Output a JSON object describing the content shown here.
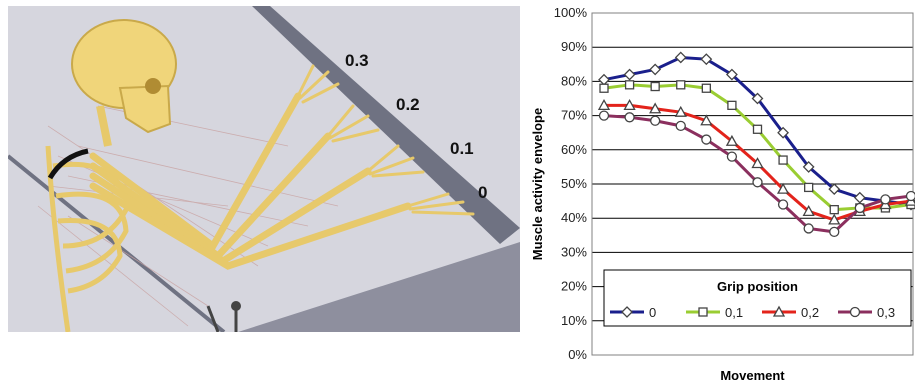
{
  "scene": {
    "grip_labels": [
      "0.3",
      "0.2",
      "0.1",
      "0"
    ]
  },
  "chart_data": {
    "type": "line",
    "xlabel": "Movement",
    "ylabel": "Muscle activity envelope",
    "ylim": [
      0,
      100
    ],
    "yticks": [
      "0%",
      "10%",
      "20%",
      "30%",
      "40%",
      "50%",
      "60%",
      "70%",
      "80%",
      "90%",
      "100%"
    ],
    "grid": true,
    "legend": {
      "title": "Grip position",
      "placement": "bottom"
    },
    "x": [
      1,
      2,
      3,
      4,
      5,
      6,
      7,
      8,
      9,
      10,
      11,
      12,
      13
    ],
    "series": [
      {
        "name": "0",
        "color": "#1a1f8c",
        "marker": "diamond",
        "values": [
          80.5,
          82,
          83.5,
          87,
          86.5,
          82,
          75,
          65,
          55,
          48.5,
          46,
          45,
          44
        ]
      },
      {
        "name": "0,1",
        "color": "#9acd32",
        "marker": "square",
        "values": [
          78,
          79,
          78.5,
          79,
          78,
          73,
          66,
          57,
          49,
          42.5,
          43,
          43,
          44
        ]
      },
      {
        "name": "0,2",
        "color": "#e3231b",
        "marker": "triangle",
        "values": [
          73,
          73,
          72,
          71,
          68.5,
          62.5,
          56,
          48.5,
          42,
          39.5,
          42,
          44,
          45
        ]
      },
      {
        "name": "0,3",
        "color": "#8b2f5e",
        "marker": "circle",
        "values": [
          70,
          69.5,
          68.5,
          67,
          63,
          58,
          50.5,
          44,
          37,
          36,
          43,
          45.5,
          46.5
        ]
      }
    ]
  }
}
